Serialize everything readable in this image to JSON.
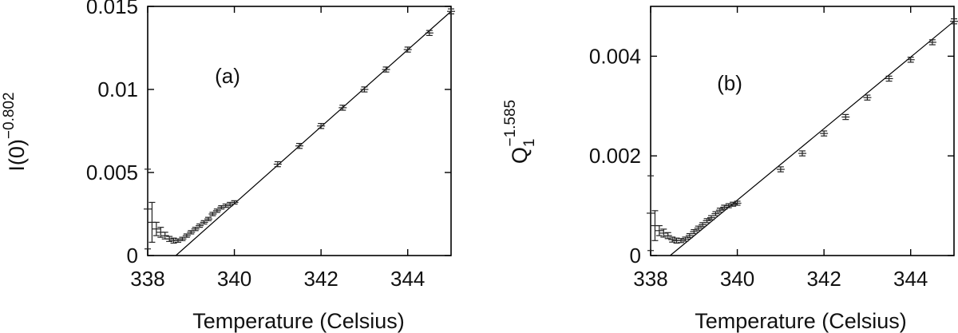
{
  "chart_data": [
    {
      "type": "scatter",
      "panel_label": "(a)",
      "xlabel": "Temperature (Celsius)",
      "ylabel_base": "I(0)",
      "ylabel_sub": "",
      "ylabel_sup": "−0.802",
      "xlim": [
        338,
        345
      ],
      "ylim": [
        0,
        0.015
      ],
      "xticks": [
        338,
        340,
        342,
        344
      ],
      "xtick_labels": [
        "338",
        "340",
        "342",
        "344"
      ],
      "yticks": [
        0,
        0.005,
        0.01,
        0.015
      ],
      "ytick_labels": [
        "0",
        "0.005",
        "0.01",
        "0.015"
      ],
      "fit_line": {
        "x": [
          338.65,
          345
        ],
        "y": [
          0,
          0.0147
        ]
      },
      "series": [
        {
          "points": [
            {
              "x": 338.0,
              "y": 0.0028,
              "err": 0.0024
            },
            {
              "x": 338.1,
              "y": 0.002,
              "err": 0.0012
            },
            {
              "x": 338.2,
              "y": 0.0016,
              "err": 0.0004
            },
            {
              "x": 338.3,
              "y": 0.0014,
              "err": 0.0003
            },
            {
              "x": 338.4,
              "y": 0.0012,
              "err": 0.0002
            },
            {
              "x": 338.5,
              "y": 0.001,
              "err": 0.00015
            },
            {
              "x": 338.6,
              "y": 0.0009,
              "err": 0.00015
            },
            {
              "x": 338.7,
              "y": 0.0009,
              "err": 0.0001
            },
            {
              "x": 338.8,
              "y": 0.001,
              "err": 0.0001
            },
            {
              "x": 338.9,
              "y": 0.0012,
              "err": 0.0001
            },
            {
              "x": 339.0,
              "y": 0.0014,
              "err": 0.0001
            },
            {
              "x": 339.1,
              "y": 0.0016,
              "err": 0.0001
            },
            {
              "x": 339.2,
              "y": 0.0018,
              "err": 0.0001
            },
            {
              "x": 339.3,
              "y": 0.002,
              "err": 0.0001
            },
            {
              "x": 339.4,
              "y": 0.0022,
              "err": 0.0001
            },
            {
              "x": 339.5,
              "y": 0.0025,
              "err": 0.0001
            },
            {
              "x": 339.6,
              "y": 0.0027,
              "err": 0.0001
            },
            {
              "x": 339.7,
              "y": 0.0029,
              "err": 0.0001
            },
            {
              "x": 339.8,
              "y": 0.003,
              "err": 0.0001
            },
            {
              "x": 339.9,
              "y": 0.0031,
              "err": 0.0001
            },
            {
              "x": 340.0,
              "y": 0.0032,
              "err": 0.0001
            },
            {
              "x": 341.0,
              "y": 0.0055,
              "err": 0.00015
            },
            {
              "x": 341.5,
              "y": 0.0066,
              "err": 0.00015
            },
            {
              "x": 342.0,
              "y": 0.0078,
              "err": 0.00015
            },
            {
              "x": 342.5,
              "y": 0.0089,
              "err": 0.00015
            },
            {
              "x": 343.0,
              "y": 0.01,
              "err": 0.00015
            },
            {
              "x": 343.5,
              "y": 0.0112,
              "err": 0.00015
            },
            {
              "x": 344.0,
              "y": 0.0124,
              "err": 0.00015
            },
            {
              "x": 344.5,
              "y": 0.0134,
              "err": 0.00015
            },
            {
              "x": 345.0,
              "y": 0.0147,
              "err": 0.00015
            }
          ]
        }
      ]
    },
    {
      "type": "scatter",
      "panel_label": "(b)",
      "xlabel": "Temperature (Celsius)",
      "ylabel_base": "Q",
      "ylabel_sub": "1",
      "ylabel_sup": "−1.585",
      "xlim": [
        338,
        345
      ],
      "ylim": [
        0,
        0.005
      ],
      "xticks": [
        338,
        340,
        342,
        344
      ],
      "xtick_labels": [
        "338",
        "340",
        "342",
        "344"
      ],
      "yticks": [
        0,
        0.002,
        0.004
      ],
      "ytick_labels": [
        "0",
        "0.002",
        "0.004"
      ],
      "fit_line": {
        "x": [
          338.45,
          345
        ],
        "y": [
          0,
          0.0047
        ]
      },
      "series": [
        {
          "points": [
            {
              "x": 338.0,
              "y": 0.00085,
              "err": 0.00075
            },
            {
              "x": 338.1,
              "y": 0.0006,
              "err": 0.0003
            },
            {
              "x": 338.2,
              "y": 0.0005,
              "err": 0.0001
            },
            {
              "x": 338.3,
              "y": 0.00045,
              "err": 8e-05
            },
            {
              "x": 338.4,
              "y": 0.0004,
              "err": 6e-05
            },
            {
              "x": 338.5,
              "y": 0.00032,
              "err": 5e-05
            },
            {
              "x": 338.6,
              "y": 0.0003,
              "err": 5e-05
            },
            {
              "x": 338.7,
              "y": 0.0003,
              "err": 4e-05
            },
            {
              "x": 338.8,
              "y": 0.00033,
              "err": 4e-05
            },
            {
              "x": 338.9,
              "y": 0.0004,
              "err": 4e-05
            },
            {
              "x": 339.0,
              "y": 0.00048,
              "err": 4e-05
            },
            {
              "x": 339.1,
              "y": 0.00055,
              "err": 4e-05
            },
            {
              "x": 339.2,
              "y": 0.00062,
              "err": 4e-05
            },
            {
              "x": 339.3,
              "y": 0.0007,
              "err": 4e-05
            },
            {
              "x": 339.4,
              "y": 0.00076,
              "err": 4e-05
            },
            {
              "x": 339.5,
              "y": 0.00084,
              "err": 4e-05
            },
            {
              "x": 339.6,
              "y": 0.00091,
              "err": 4e-05
            },
            {
              "x": 339.7,
              "y": 0.00097,
              "err": 4e-05
            },
            {
              "x": 339.8,
              "y": 0.001,
              "err": 4e-05
            },
            {
              "x": 339.9,
              "y": 0.00103,
              "err": 4e-05
            },
            {
              "x": 340.0,
              "y": 0.00105,
              "err": 4e-05
            },
            {
              "x": 341.0,
              "y": 0.00173,
              "err": 5e-05
            },
            {
              "x": 341.5,
              "y": 0.00205,
              "err": 5e-05
            },
            {
              "x": 342.0,
              "y": 0.00245,
              "err": 5e-05
            },
            {
              "x": 342.5,
              "y": 0.00278,
              "err": 5e-05
            },
            {
              "x": 343.0,
              "y": 0.00317,
              "err": 5e-05
            },
            {
              "x": 343.5,
              "y": 0.00355,
              "err": 5e-05
            },
            {
              "x": 344.0,
              "y": 0.00393,
              "err": 5e-05
            },
            {
              "x": 344.5,
              "y": 0.00428,
              "err": 5e-05
            },
            {
              "x": 345.0,
              "y": 0.0047,
              "err": 5e-05
            }
          ]
        }
      ]
    }
  ]
}
